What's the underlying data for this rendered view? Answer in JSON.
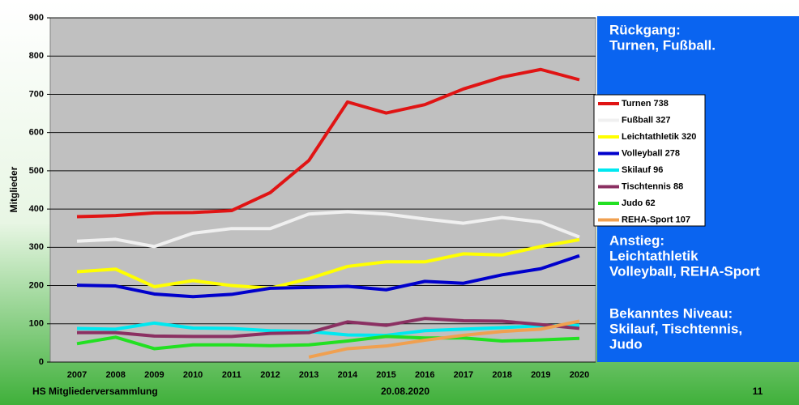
{
  "chart_data": {
    "type": "line",
    "y_label": "Mitglieder",
    "categories": [
      "2007",
      "2008",
      "2009",
      "2010",
      "2011",
      "2012",
      "2013",
      "2014",
      "2015",
      "2016",
      "2017",
      "2018",
      "2019",
      "2020"
    ],
    "series": [
      {
        "name": "Turnen 738",
        "color": "#e01414",
        "values": [
          380,
          383,
          390,
          391,
          396,
          443,
          527,
          680,
          651,
          673,
          714,
          745,
          765,
          738
        ]
      },
      {
        "name": "Fußball 327",
        "color": "#f0f0f0",
        "values": [
          316,
          321,
          302,
          337,
          349,
          349,
          387,
          393,
          387,
          374,
          363,
          378,
          366,
          327
        ]
      },
      {
        "name": "Leichtathletik 320",
        "color": "#ffff00",
        "values": [
          236,
          243,
          197,
          213,
          200,
          193,
          218,
          250,
          262,
          262,
          283,
          280,
          302,
          320
        ]
      },
      {
        "name": "Volleyball 278",
        "color": "#0000cc",
        "values": [
          201,
          199,
          178,
          171,
          177,
          193,
          195,
          198,
          189,
          211,
          206,
          228,
          244,
          278
        ]
      },
      {
        "name": "Skilauf 96",
        "color": "#00e8f0",
        "values": [
          88,
          86,
          102,
          89,
          88,
          82,
          80,
          71,
          70,
          82,
          86,
          90,
          95,
          96
        ]
      },
      {
        "name": "Tischtennis 88",
        "color": "#8b3062",
        "values": [
          77,
          77,
          68,
          67,
          67,
          75,
          77,
          105,
          96,
          114,
          108,
          107,
          98,
          88
        ]
      },
      {
        "name": "Judo 62",
        "color": "#22e022",
        "values": [
          48,
          65,
          35,
          45,
          45,
          43,
          45,
          55,
          67,
          63,
          63,
          55,
          58,
          62
        ]
      },
      {
        "name": "REHA-Sport 107",
        "color": "#f0a050",
        "values": [
          null,
          null,
          null,
          null,
          null,
          null,
          13,
          35,
          42,
          57,
          70,
          80,
          86,
          107
        ]
      }
    ],
    "ylim": [
      0,
      900
    ],
    "yticks": [
      0,
      100,
      200,
      300,
      400,
      500,
      600,
      700,
      800,
      900
    ],
    "grid": true
  },
  "panel": [
    [
      "Rückgang:",
      "Turnen, Fußball."
    ],
    [
      "Anstieg:",
      "Leichtathletik",
      "Volleyball, REHA-Sport"
    ],
    [
      "Bekanntes Niveau:",
      "Skilauf, Tischtennis,",
      "Judo"
    ]
  ],
  "footer": [
    "HS Mitgliederversammlung",
    "20.08.2020",
    "11"
  ]
}
